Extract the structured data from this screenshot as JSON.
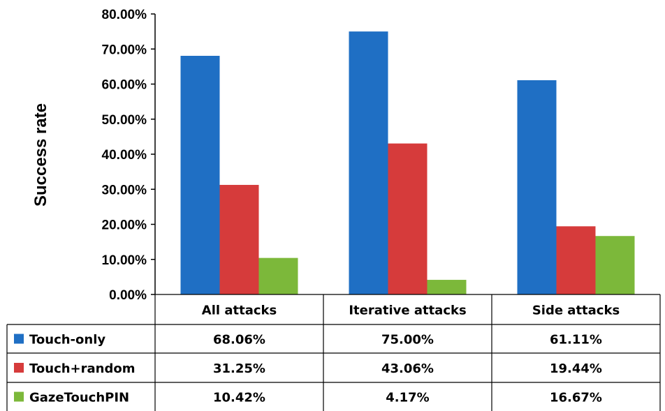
{
  "chart_data": {
    "type": "bar",
    "ylabel": "Success rate",
    "ylim": [
      0,
      80
    ],
    "y_ticks": [
      "0.00%",
      "10.00%",
      "20.00%",
      "30.00%",
      "40.00%",
      "50.00%",
      "60.00%",
      "70.00%",
      "80.00%"
    ],
    "categories": [
      "All attacks",
      "Iterative attacks",
      "Side attacks"
    ],
    "series": [
      {
        "name": "Touch-only",
        "color": "#1f6fc4",
        "values": [
          68.06,
          75.0,
          61.11
        ],
        "labels": [
          "68.06%",
          "75.00%",
          "61.11%"
        ]
      },
      {
        "name": "Touch+random",
        "color": "#d63b3b",
        "values": [
          31.25,
          43.06,
          19.44
        ],
        "labels": [
          "31.25%",
          "43.06%",
          "19.44%"
        ]
      },
      {
        "name": "GazeTouchPIN",
        "color": "#7cb83a",
        "values": [
          10.42,
          4.17,
          16.67
        ],
        "labels": [
          "10.42%",
          "4.17%",
          "16.67%"
        ]
      }
    ],
    "grid": false,
    "legend": "data-table"
  }
}
